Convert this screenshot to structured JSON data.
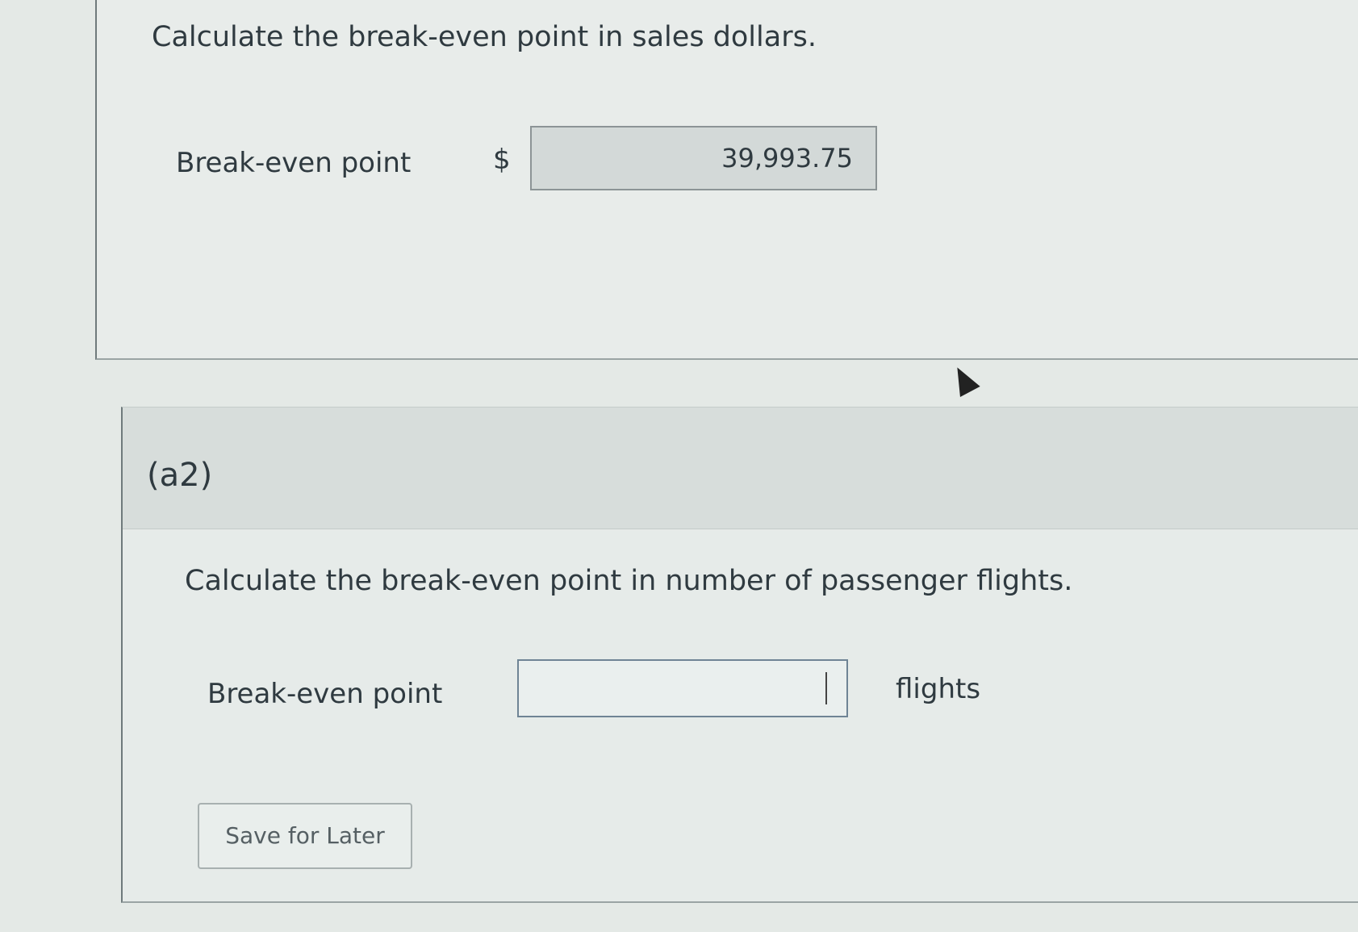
{
  "part_a1": {
    "question": "Calculate the break-even point in sales dollars.",
    "label": "Break-even point",
    "currency": "$",
    "value": "39,993.75"
  },
  "part_a2": {
    "header": "(a2)",
    "question": "Calculate the break-even point in number of passenger flights.",
    "label": "Break-even point",
    "value": "",
    "unit": "flights"
  },
  "actions": {
    "save_label": "Save for Later"
  }
}
